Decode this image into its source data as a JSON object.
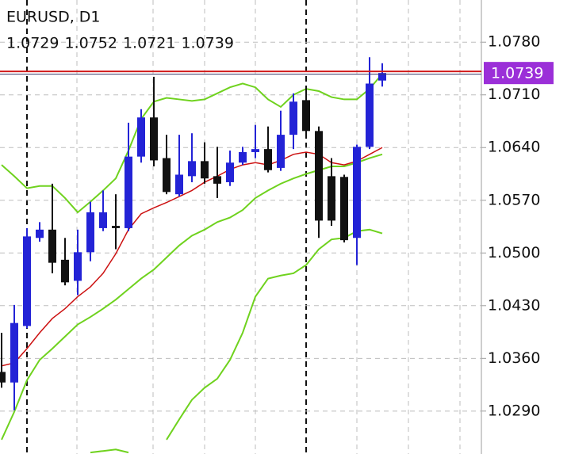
{
  "chart_data": {
    "type": "candlestick",
    "title": "EURUSD, D1",
    "open": [
      1.0342,
      1.0328,
      1.0403,
      1.052,
      1.0531,
      1.0491,
      1.0463,
      1.0501,
      1.0533,
      1.0536,
      1.0533,
      1.0628,
      1.068,
      1.0626,
      1.0578,
      1.0602,
      1.0622,
      1.0602,
      1.0594,
      1.062,
      1.0634,
      1.0638,
      1.0613,
      1.0657,
      1.0703,
      1.0662,
      1.0602,
      1.0601,
      1.052,
      1.0641,
      1.0729
    ],
    "high": [
      1.0394,
      1.0431,
      1.0533,
      1.0541,
      1.0592,
      1.052,
      1.0531,
      1.0568,
      1.0583,
      1.0578,
      1.0673,
      1.0691,
      1.0734,
      1.0657,
      1.0657,
      1.0659,
      1.0647,
      1.0641,
      1.0636,
      1.0641,
      1.067,
      1.0668,
      1.0689,
      1.0712,
      1.072,
      1.0668,
      1.0626,
      1.0604,
      1.0644,
      1.076,
      1.0752
    ],
    "low": [
      1.0321,
      1.0291,
      1.04,
      1.0515,
      1.0473,
      1.0457,
      1.0444,
      1.0489,
      1.0529,
      1.0505,
      1.0529,
      1.062,
      1.0615,
      1.0578,
      1.0575,
      1.0594,
      1.0592,
      1.0573,
      1.0589,
      1.0617,
      1.0626,
      1.0607,
      1.0609,
      1.0638,
      1.0659,
      1.052,
      1.0536,
      1.0514,
      1.0484,
      1.0638,
      1.0721
    ],
    "close": [
      1.0328,
      1.0407,
      1.0522,
      1.0531,
      1.0487,
      1.0461,
      1.0501,
      1.0554,
      1.0554,
      1.0533,
      1.0628,
      1.068,
      1.0623,
      1.0581,
      1.0604,
      1.0622,
      1.0599,
      1.0592,
      1.062,
      1.0634,
      1.0638,
      1.061,
      1.0657,
      1.0701,
      1.0662,
      1.0543,
      1.0543,
      1.0517,
      1.0641,
      1.0725,
      1.0739
    ],
    "up_color": "#2323d6",
    "down_color": "#111111",
    "lines": [
      {
        "color": "#6fd21e",
        "values": [
          1.0617,
          1.0602,
          1.0586,
          1.0589,
          1.0589,
          1.0573,
          1.0554,
          1.0568,
          1.0583,
          1.0599,
          1.0636,
          1.0678,
          1.0701,
          1.0706,
          1.0704,
          1.0702,
          1.0704,
          1.0712,
          1.072,
          1.0725,
          1.072,
          1.0704,
          1.0694,
          1.071,
          1.0718,
          1.0715,
          1.0707,
          1.0704,
          1.0704,
          1.0718,
          1.0738
        ]
      },
      {
        "color": "#6fd21e",
        "values": [
          1.0252,
          1.0289,
          1.0331,
          1.0358,
          1.0373,
          1.0389,
          1.0405,
          1.0415,
          1.0426,
          1.0438,
          1.0452,
          1.0466,
          1.0478,
          1.0494,
          1.051,
          1.0523,
          1.0531,
          1.0541,
          1.0547,
          1.0557,
          1.0573,
          1.0583,
          1.0592,
          1.0599,
          1.0605,
          1.061,
          1.0615,
          1.0615,
          1.062,
          1.0626,
          1.0631
        ]
      },
      {
        "color": "#6fd21e",
        "values": [
          null,
          null,
          null,
          null,
          null,
          null,
          null,
          1.0235,
          1.0237,
          1.0239,
          1.0235,
          null,
          null,
          1.0252,
          1.0279,
          1.0305,
          1.0321,
          1.0333,
          1.0358,
          1.0394,
          1.0442,
          1.0466,
          1.047,
          1.0473,
          1.0484,
          1.0505,
          1.0518,
          1.052,
          1.0529,
          1.0531,
          1.0526
        ]
      },
      {
        "color": "#cc1111",
        "values": [
          1.035,
          1.0354,
          1.0373,
          1.0394,
          1.0413,
          1.0426,
          1.0442,
          1.0455,
          1.0473,
          1.0499,
          1.0531,
          1.0552,
          1.056,
          1.0567,
          1.0575,
          1.0583,
          1.0594,
          1.0602,
          1.0611,
          1.0617,
          1.062,
          1.0617,
          1.0623,
          1.0631,
          1.0634,
          1.0631,
          1.062,
          1.0617,
          1.0622,
          1.0631,
          1.064
        ]
      }
    ],
    "price_color": "#9b2fd8",
    "ylim": [
      1.0233,
      1.0836
    ],
    "yticks": [
      {
        "value": 1.078,
        "label": "1.0780"
      },
      {
        "value": 1.071,
        "label": "1.0710"
      },
      {
        "value": 1.064,
        "label": "1.0640"
      },
      {
        "value": 1.057,
        "label": "1.0570"
      },
      {
        "value": 1.05,
        "label": "1.0500"
      },
      {
        "value": 1.043,
        "label": "1.0430"
      },
      {
        "value": 1.036,
        "label": "1.0360"
      },
      {
        "value": 1.029,
        "label": "1.0290"
      }
    ],
    "grid": true
  }
}
